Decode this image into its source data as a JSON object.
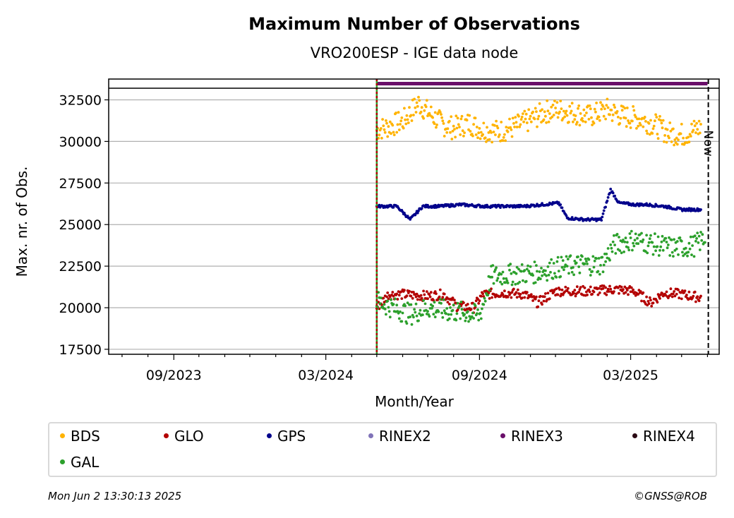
{
  "chart_data": {
    "type": "scatter",
    "title": "Maximum Number of Observations",
    "subtitle": "VRO200ESP - IGE data node",
    "xlabel": "Month/Year",
    "ylabel": "Max. nr. of Obs.",
    "x_tick_labels": [
      "09/2023",
      "03/2024",
      "09/2024",
      "03/2025"
    ],
    "y_ticks": [
      17500,
      20000,
      22500,
      25000,
      27500,
      30000,
      32500
    ],
    "ylim": [
      17200,
      33200
    ],
    "xlim": [
      "2023-06-15",
      "2025-06-15"
    ],
    "grid": "horizontal",
    "now_label": "Now",
    "now_date": "2025-06-02",
    "start_marker_date": "2024-05-01",
    "rinex_bar": {
      "series": "RINEX3",
      "start": "2024-05-01",
      "end": "2025-06-01"
    },
    "series": [
      {
        "name": "BDS",
        "color": "#ffb300",
        "points": [
          [
            "2024-05-01",
            30700
          ],
          [
            "2024-05-15",
            30900
          ],
          [
            "2024-06-01",
            31200
          ],
          [
            "2024-06-20",
            32300
          ],
          [
            "2024-07-05",
            31600
          ],
          [
            "2024-07-20",
            31000
          ],
          [
            "2024-08-01",
            30800
          ],
          [
            "2024-08-20",
            31100
          ],
          [
            "2024-09-05",
            30700
          ],
          [
            "2024-09-25",
            30600
          ],
          [
            "2024-10-15",
            30900
          ],
          [
            "2024-11-01",
            31300
          ],
          [
            "2024-11-20",
            31800
          ],
          [
            "2024-12-05",
            31900
          ],
          [
            "2024-12-25",
            31700
          ],
          [
            "2025-01-10",
            31500
          ],
          [
            "2025-02-01",
            31900
          ],
          [
            "2025-02-20",
            31500
          ],
          [
            "2025-03-10",
            31400
          ],
          [
            "2025-03-30",
            31000
          ],
          [
            "2025-04-15",
            30500
          ],
          [
            "2025-05-05",
            30400
          ],
          [
            "2025-05-25",
            30900
          ]
        ]
      },
      {
        "name": "GLO",
        "color": "#b30000",
        "points": [
          [
            "2024-05-01",
            20000
          ],
          [
            "2024-05-15",
            20800
          ],
          [
            "2024-06-01",
            20800
          ],
          [
            "2024-07-01",
            20700
          ],
          [
            "2024-07-20",
            20800
          ],
          [
            "2024-08-05",
            20100
          ],
          [
            "2024-08-25",
            20000
          ],
          [
            "2024-09-05",
            20800
          ],
          [
            "2024-10-01",
            20900
          ],
          [
            "2024-10-25",
            20800
          ],
          [
            "2024-11-10",
            20300
          ],
          [
            "2024-12-01",
            21000
          ],
          [
            "2024-12-25",
            21000
          ],
          [
            "2025-01-15",
            21000
          ],
          [
            "2025-02-10",
            21100
          ],
          [
            "2025-03-05",
            21000
          ],
          [
            "2025-03-25",
            20300
          ],
          [
            "2025-04-10",
            20900
          ],
          [
            "2025-05-01",
            20800
          ],
          [
            "2025-05-25",
            20600
          ]
        ]
      },
      {
        "name": "GPS",
        "color": "#00008b",
        "points": [
          [
            "2024-05-01",
            26100
          ],
          [
            "2024-05-25",
            26100
          ],
          [
            "2024-06-10",
            25300
          ],
          [
            "2024-06-25",
            26100
          ],
          [
            "2024-07-15",
            26100
          ],
          [
            "2024-08-10",
            26200
          ],
          [
            "2024-09-05",
            26100
          ],
          [
            "2024-10-01",
            26100
          ],
          [
            "2024-10-25",
            26100
          ],
          [
            "2024-11-15",
            26200
          ],
          [
            "2024-12-05",
            26300
          ],
          [
            "2024-12-15",
            25400
          ],
          [
            "2025-01-05",
            25300
          ],
          [
            "2025-01-25",
            25300
          ],
          [
            "2025-02-05",
            27100
          ],
          [
            "2025-02-15",
            26300
          ],
          [
            "2025-03-05",
            26200
          ],
          [
            "2025-03-20",
            26200
          ],
          [
            "2025-04-10",
            26100
          ],
          [
            "2025-05-01",
            25900
          ],
          [
            "2025-05-25",
            25900
          ]
        ]
      },
      {
        "name": "RINEX2",
        "color": "#8073b8",
        "points": []
      },
      {
        "name": "RINEX3",
        "color": "#6a0f6a",
        "points": []
      },
      {
        "name": "RINEX4",
        "color": "#2b0a14",
        "points": []
      },
      {
        "name": "GAL",
        "color": "#2ca02c",
        "points": [
          [
            "2024-05-01",
            20400
          ],
          [
            "2024-05-20",
            20000
          ],
          [
            "2024-06-10",
            19600
          ],
          [
            "2024-07-01",
            20000
          ],
          [
            "2024-07-25",
            19800
          ],
          [
            "2024-08-15",
            19700
          ],
          [
            "2024-09-01",
            19500
          ],
          [
            "2024-09-15",
            21900
          ],
          [
            "2024-10-10",
            22000
          ],
          [
            "2024-11-05",
            22100
          ],
          [
            "2024-12-01",
            22400
          ],
          [
            "2025-01-01",
            22600
          ],
          [
            "2025-01-25",
            22600
          ],
          [
            "2025-02-10",
            23800
          ],
          [
            "2025-03-05",
            24100
          ],
          [
            "2025-03-30",
            23800
          ],
          [
            "2025-04-20",
            23600
          ],
          [
            "2025-05-15",
            23700
          ],
          [
            "2025-05-30",
            24200
          ]
        ]
      }
    ]
  },
  "footer": {
    "timestamp": "Mon Jun  2 13:30:13 2025",
    "credit": "©GNSS@ROB"
  }
}
